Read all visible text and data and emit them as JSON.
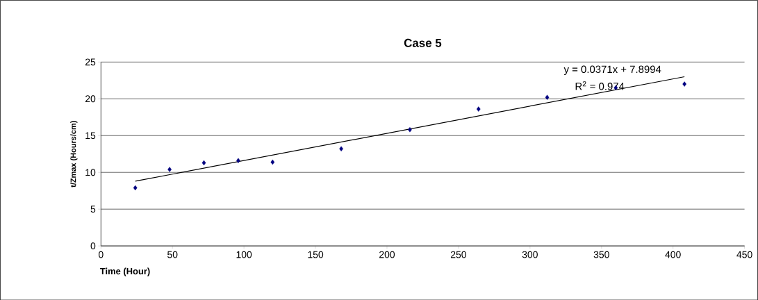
{
  "chart_data": {
    "type": "scatter",
    "title": "Case 5",
    "xlabel": "Time (Hour)",
    "ylabel": "t/Zmax (Hours/cm)",
    "x": [
      24,
      48,
      72,
      96,
      120,
      168,
      216,
      264,
      312,
      360,
      408
    ],
    "series": [
      {
        "color": "#000080",
        "values": [
          7.9,
          10.4,
          11.3,
          11.6,
          11.4,
          13.2,
          15.8,
          18.6,
          20.2,
          21.5,
          22.0
        ],
        "marker": "diamond"
      },
      {
        "type": "line",
        "color": "#000000",
        "x": [
          24,
          408
        ],
        "values": [
          8.8,
          23.0
        ],
        "marker": "none",
        "line_style": "solid"
      }
    ],
    "annotations": [
      "y = 0.0371x + 7.8994",
      "R$^{2}$ = 0.974"
    ],
    "xlim": [
      0,
      450
    ],
    "ylim": [
      0,
      25
    ],
    "xticks": [
      0,
      50,
      100,
      150,
      200,
      250,
      300,
      350,
      400,
      450
    ],
    "yticks": [
      0,
      5,
      10,
      15,
      20,
      25
    ],
    "grid": "y"
  }
}
